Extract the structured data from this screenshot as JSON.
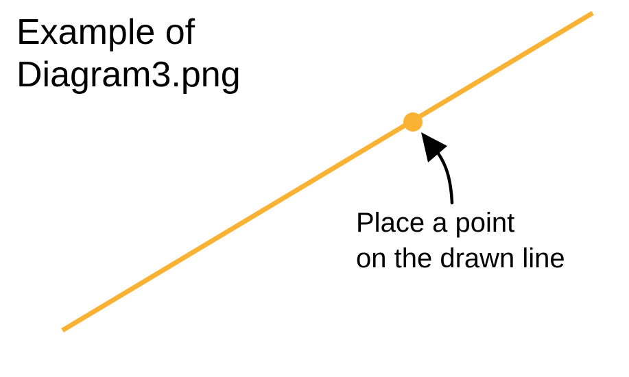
{
  "title": {
    "line1": "Example of",
    "line2": "Diagram3.png"
  },
  "annotation": {
    "line1": "Place a point",
    "line2": "on the drawn line"
  },
  "colors": {
    "line": "#F9B234",
    "point": "#F9B234",
    "arrow": "#000000",
    "text": "#000000",
    "background": "#FFFFFF"
  }
}
